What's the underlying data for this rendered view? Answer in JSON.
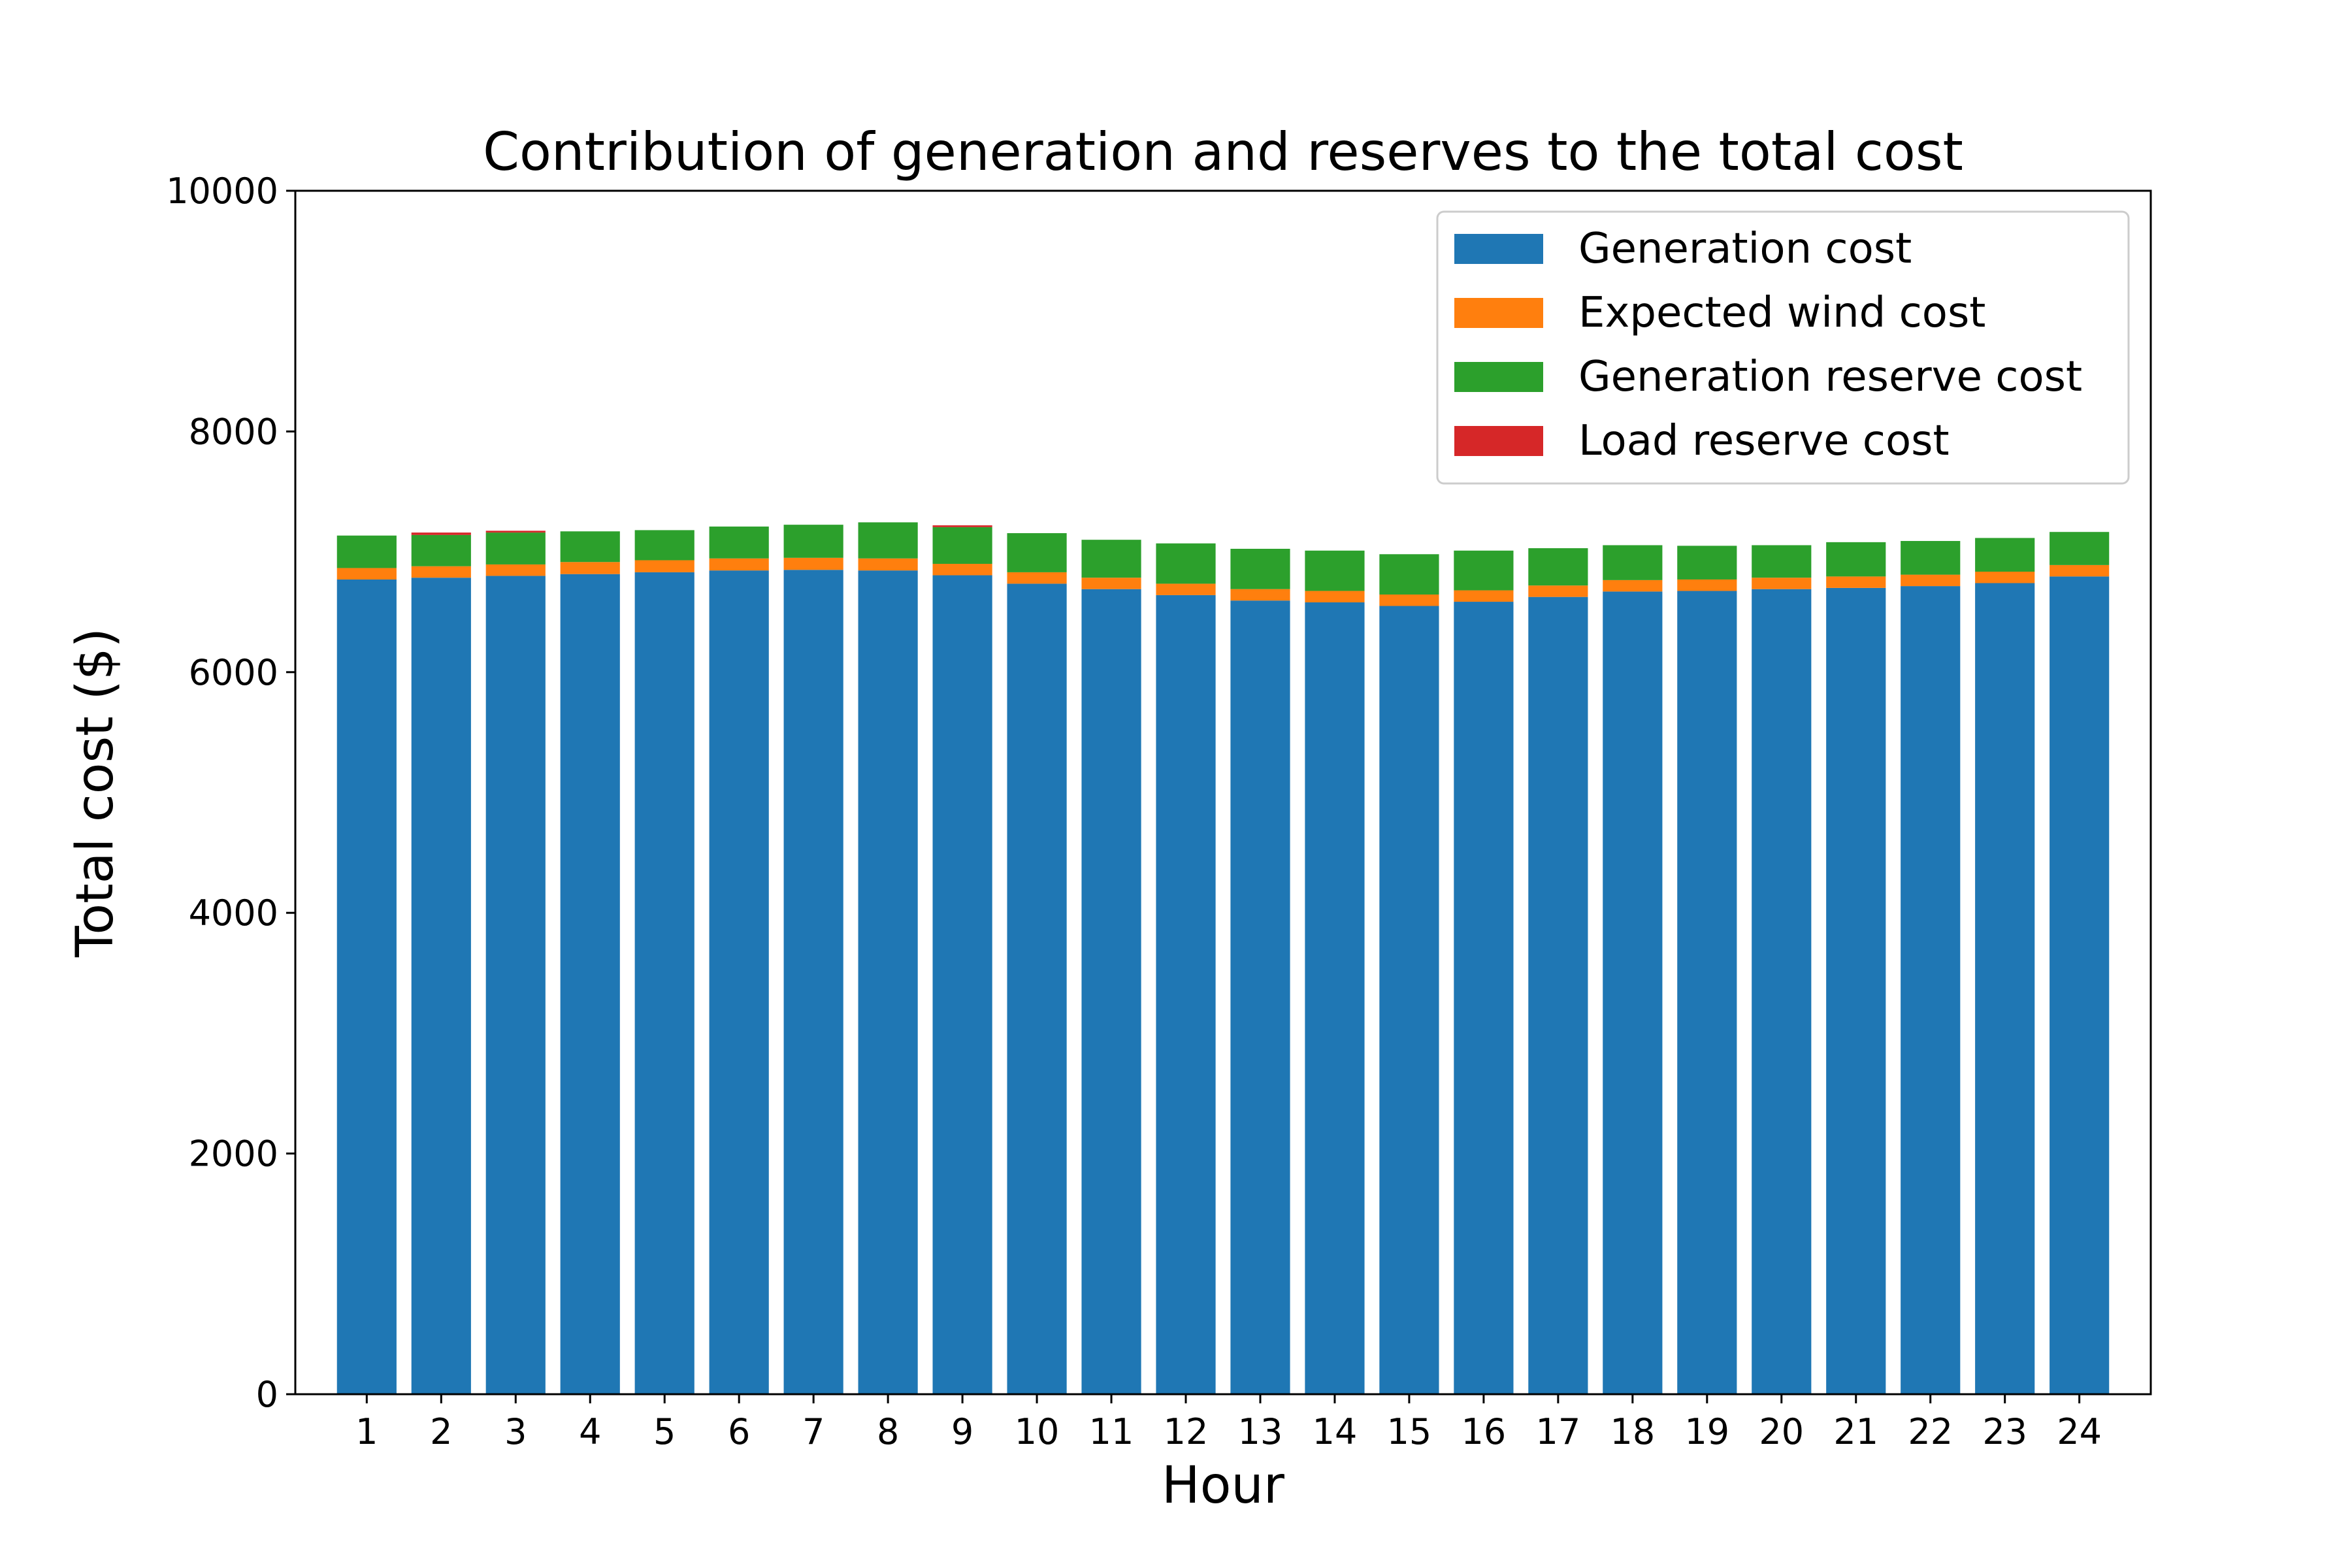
{
  "chart_data": {
    "type": "bar",
    "stacked": true,
    "title": "Contribution of generation and reserves to the total cost",
    "xlabel": "Hour",
    "ylabel": "Total cost ($)",
    "ylim": [
      0,
      10000
    ],
    "yticks": [
      0,
      2000,
      4000,
      6000,
      8000,
      10000
    ],
    "grid": false,
    "legend_position": "top-right",
    "categories": [
      "1",
      "2",
      "3",
      "4",
      "5",
      "6",
      "7",
      "8",
      "9",
      "10",
      "11",
      "12",
      "13",
      "14",
      "15",
      "16",
      "17",
      "18",
      "19",
      "20",
      "21",
      "22",
      "23",
      "24"
    ],
    "series": [
      {
        "name": "Generation cost",
        "color": "#1f77b4",
        "values": [
          6770,
          6785,
          6800,
          6815,
          6830,
          6845,
          6850,
          6845,
          6805,
          6735,
          6690,
          6640,
          6595,
          6580,
          6550,
          6585,
          6625,
          6670,
          6675,
          6690,
          6700,
          6715,
          6740,
          6795
        ]
      },
      {
        "name": "Expected wind cost",
        "color": "#ff7f0e",
        "values": [
          95,
          95,
          95,
          100,
          100,
          100,
          100,
          100,
          95,
          95,
          95,
          95,
          95,
          95,
          95,
          95,
          95,
          95,
          95,
          95,
          95,
          95,
          95,
          95
        ]
      },
      {
        "name": "Generation reserve cost",
        "color": "#2ca02c",
        "values": [
          270,
          260,
          265,
          255,
          250,
          265,
          275,
          300,
          305,
          325,
          315,
          335,
          335,
          335,
          335,
          330,
          310,
          290,
          280,
          270,
          285,
          280,
          280,
          275
        ]
      },
      {
        "name": "Load reserve cost",
        "color": "#d62728",
        "values": [
          0,
          20,
          15,
          0,
          0,
          0,
          0,
          0,
          15,
          0,
          0,
          0,
          0,
          0,
          0,
          0,
          0,
          0,
          0,
          0,
          0,
          0,
          0,
          0
        ]
      }
    ]
  }
}
